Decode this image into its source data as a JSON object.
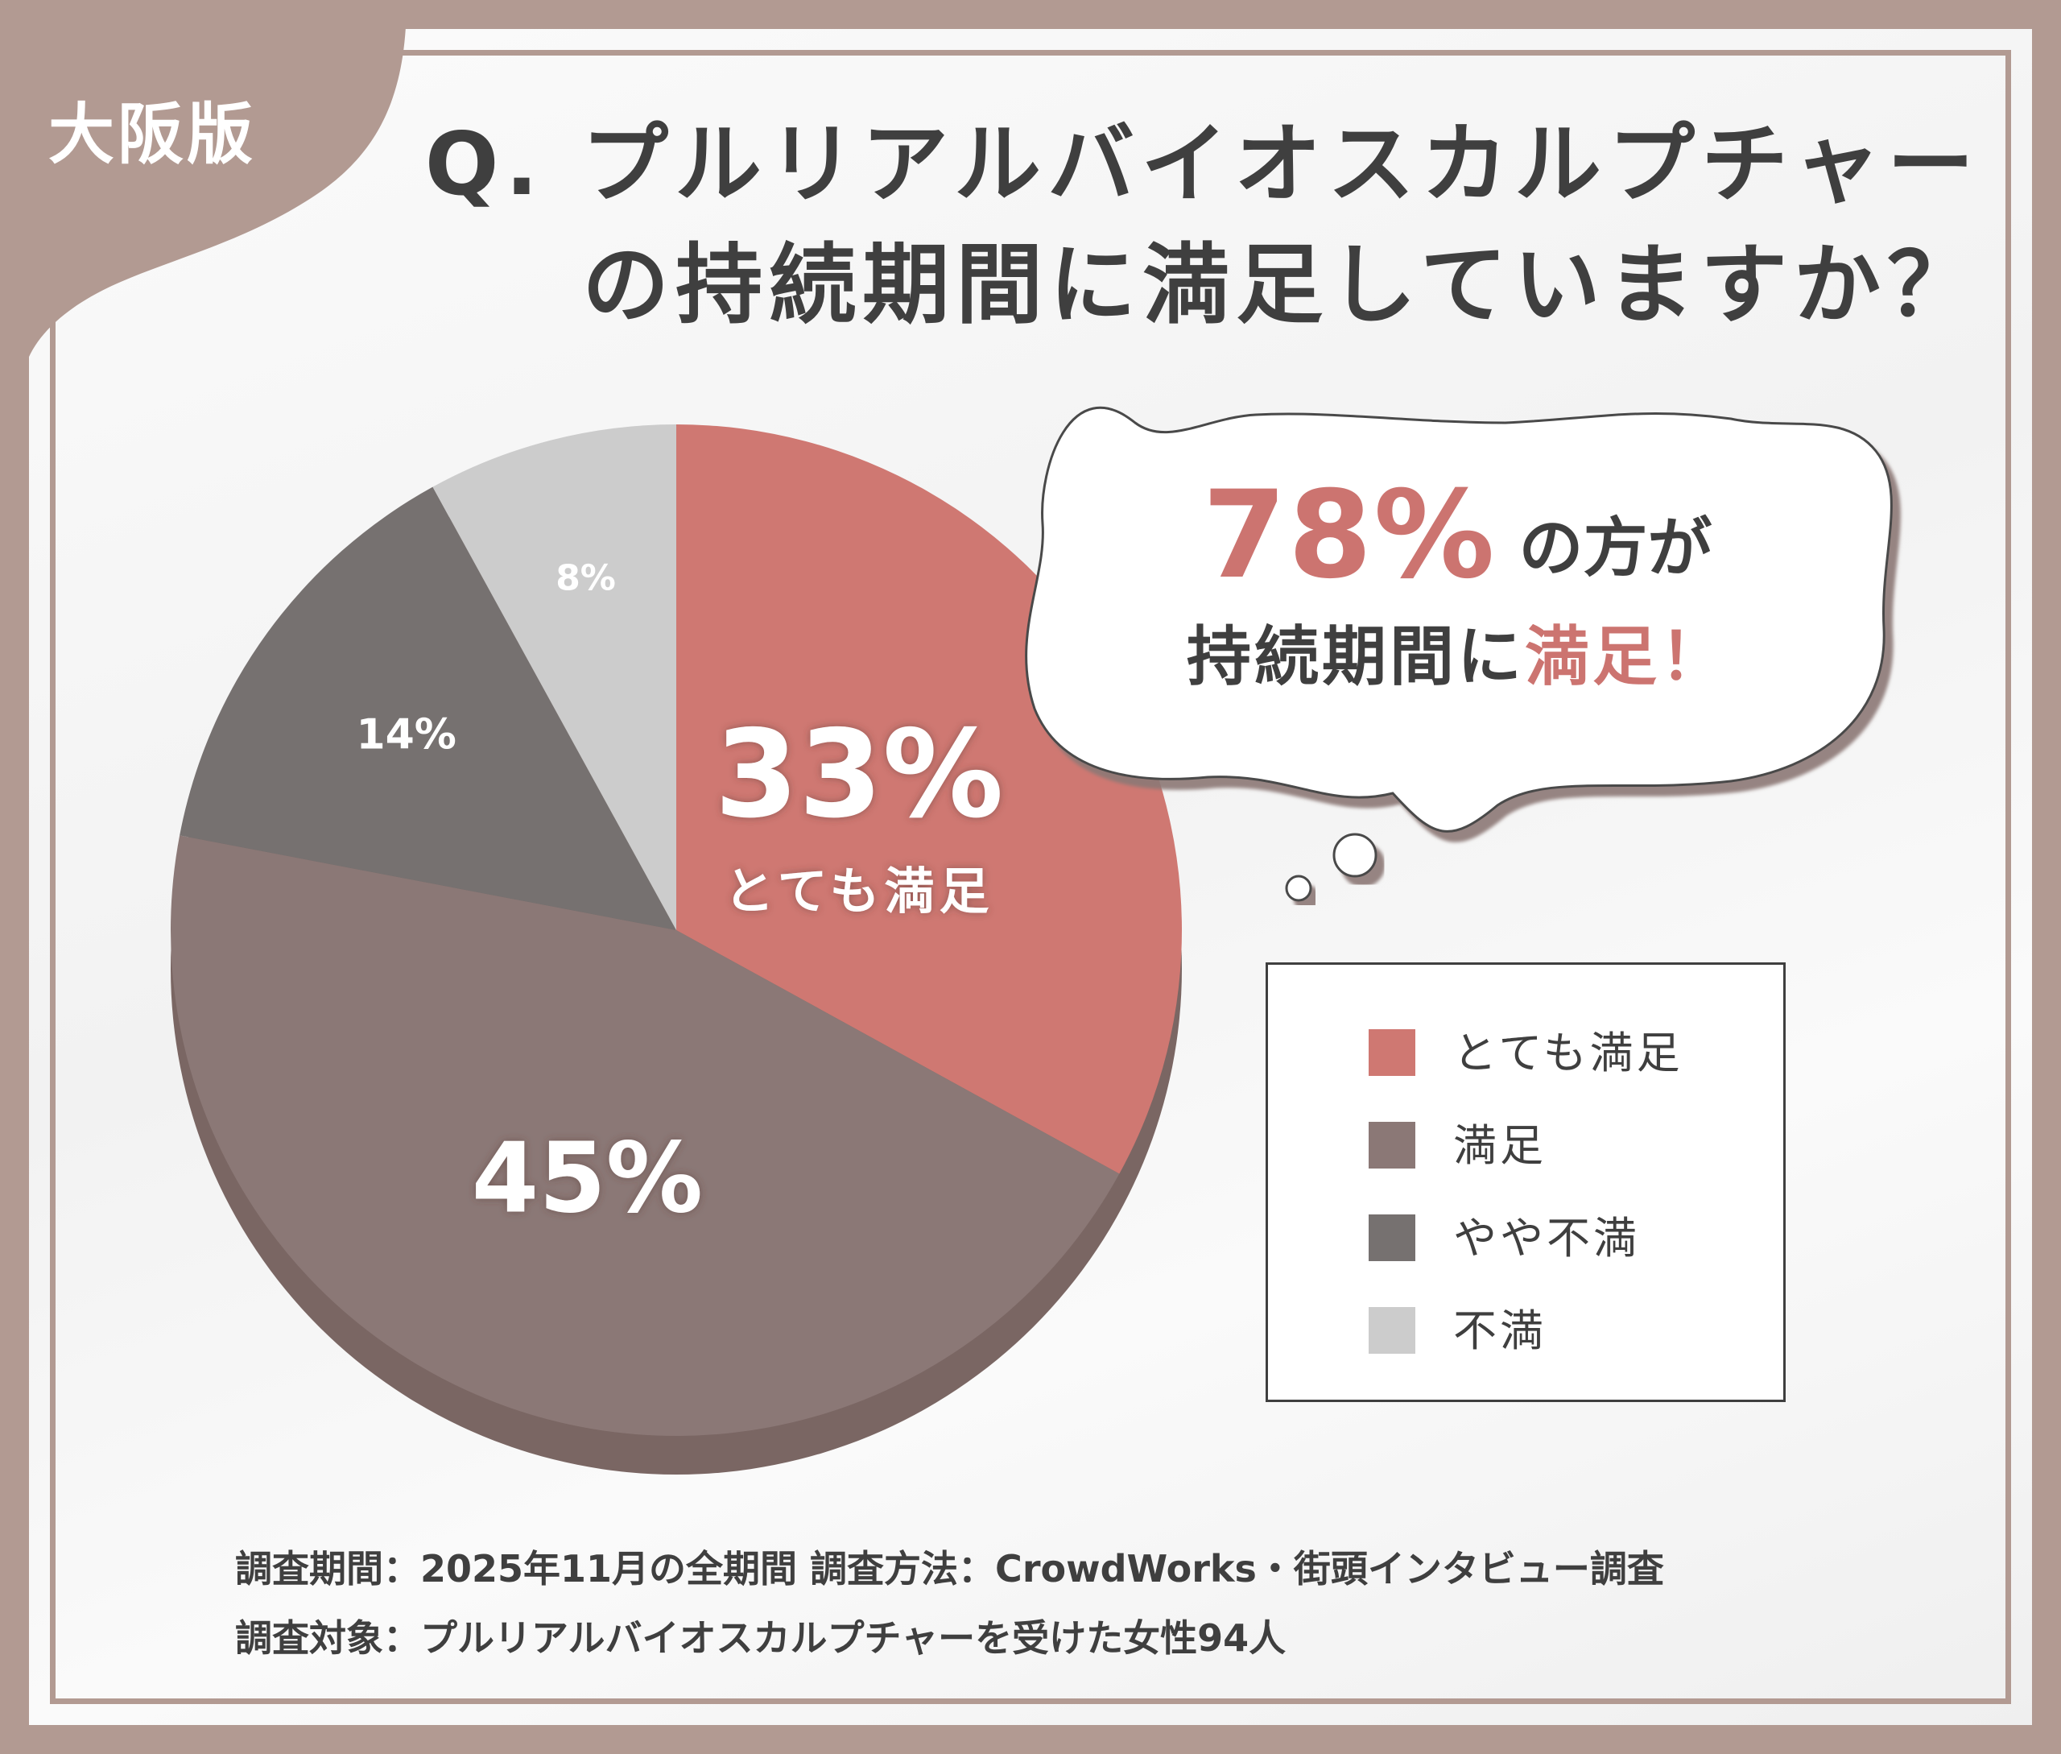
{
  "badge": {
    "region": "大阪版"
  },
  "title": {
    "line1": "Q. プルリアルバイオスカルプチャー",
    "line2": "の持続期間に満足していますか？"
  },
  "callout": {
    "percent": "78%",
    "suffix": "の方が",
    "line2_prefix": "持続期間に",
    "line2_highlight": "満足！"
  },
  "chart_data": {
    "type": "pie",
    "categories": [
      "とても満足",
      "満足",
      "やや不満",
      "不満"
    ],
    "values": [
      33,
      45,
      14,
      8
    ],
    "unit": "%",
    "slice_labels": [
      "33%",
      "45%",
      "14%",
      "8%"
    ],
    "highlight_sublabel": "とても満足",
    "colors": [
      "#cf7872",
      "#8b7876",
      "#767170",
      "#cccccc"
    ],
    "start": "12 o'clock",
    "direction": "clockwise",
    "legend_placement": "right"
  },
  "legend": {
    "items": [
      {
        "label": "とても満足",
        "color": "#cf7872"
      },
      {
        "label": "満足",
        "color": "#8b7876"
      },
      {
        "label": "やや不満",
        "color": "#767170"
      },
      {
        "label": "不満",
        "color": "#cccccc"
      }
    ]
  },
  "footer": {
    "line1": "調査期間：2025年11月の全期間  調査方法：CrowdWorks・街頭インタビュー調査",
    "line2": "調査対象：プルリアルバイオスカルプチャーを受けた女性94人"
  },
  "theme": {
    "frame": "#b29a92",
    "accent": "#cc7470",
    "text": "#3f3f3f"
  }
}
